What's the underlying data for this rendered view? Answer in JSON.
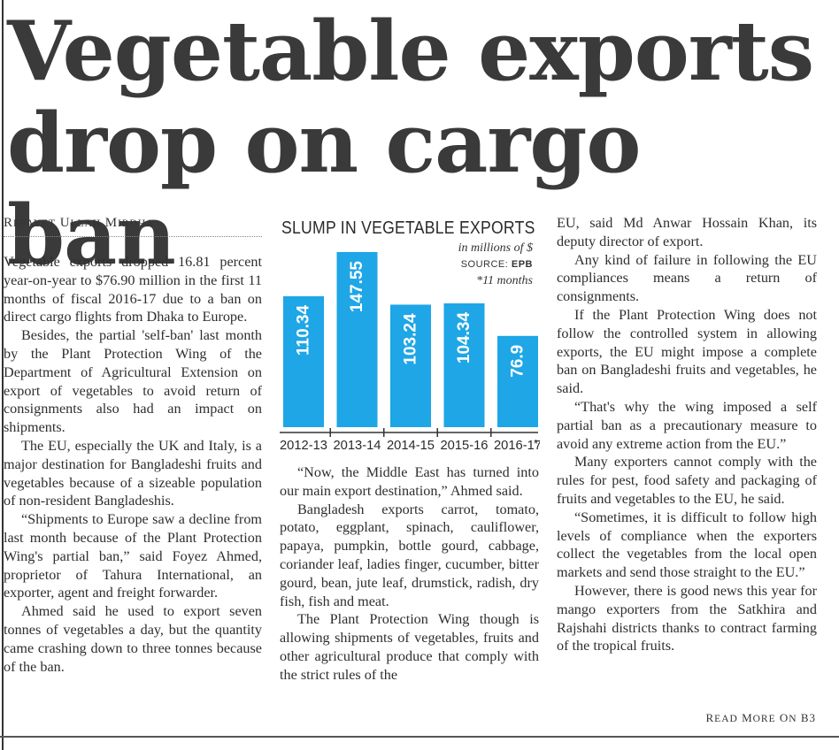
{
  "headline": {
    "line1": "Vegetable exports",
    "line2": "drop on cargo ban"
  },
  "byline": {
    "first_initial": "R",
    "first_rest": "EFAYET",
    "last_initial": "U",
    "last_rest": "LLAH",
    "third_initial": "M",
    "third_rest": "IRDHA"
  },
  "chart_data": {
    "type": "bar",
    "title": "SLUMP IN VEGETABLE EXPORTS",
    "unit": "in millions of $",
    "source_label": "SOURCE:",
    "source": "EPB",
    "note": "*11 months",
    "categories": [
      "2012-13",
      "2013-14",
      "2014-15",
      "2015-16",
      "2016-17"
    ],
    "values": [
      110.34,
      147.55,
      103.24,
      104.34,
      76.9
    ],
    "value_labels": [
      "110.34",
      "147.55",
      "103.24",
      "104.34",
      "76.9"
    ],
    "footnote_marker": "*",
    "ylim": [
      0,
      155
    ],
    "bar_color": "#1ea6e6",
    "axis_color": "#333333"
  },
  "col1": [
    "Vegetable exports dropped 16.81 percent year-on-year to $76.90 million in the first 11 months of fiscal 2016-17 due to a ban on direct cargo flights from Dhaka to Europe.",
    "Besides, the partial 'self-ban' last month by the Plant Protection Wing of the Department of Agricultural Extension on export of vegetables to avoid return of consignments also had an impact on shipments.",
    "The EU, especially the UK and Italy, is a major destination for Bangladeshi fruits and vegetables because of a sizeable population of non-resident Bangladeshis.",
    "“Shipments to Europe saw a decline from last month because of the Plant Protection Wing's partial ban,” said Foyez Ahmed, proprietor of Tahura International, an exporter, agent and freight forwarder.",
    "Ahmed said he used to export seven tonnes of vegetables a day, but the quantity came crashing down to three tonnes because of the ban."
  ],
  "col2": [
    "“Now, the Middle East has turned into our main export destination,” Ahmed said.",
    "Bangladesh exports carrot, tomato, potato, eggplant, spinach, cauliflower, papaya, pumpkin, bottle gourd, cabbage, coriander leaf, ladies finger, cucumber, bitter gourd, bean, jute leaf, drumstick, radish, dry fish, fish and meat.",
    "The Plant Protection Wing though is allowing shipments of vegetables, fruits and other agricultural produce that comply with the strict rules of the"
  ],
  "col3": [
    "EU, said Md Anwar Hossain Khan, its deputy director of export.",
    "Any kind of failure in following the EU compliances means a return of consignments.",
    "If the Plant Protection Wing does not follow the controlled system in allowing exports, the EU might impose a complete ban on Bangladeshi fruits and vegetables, he said.",
    "“That's why the wing imposed a self partial ban as a precautionary measure to avoid any extreme action from the EU.”",
    "Many exporters cannot comply with the rules for pest, food safety and packaging of fruits and vegetables to the EU, he said.",
    "“Sometimes, it is difficult to follow high levels of compliance when the exporters collect the vegetables from the local open markets and send those straight to the EU.”",
    "However, there is good news this year for mango exporters from the Satkhira and Rajshahi districts thanks to contract farming of the tropical fruits."
  ],
  "readmore": {
    "r": "R",
    "ead": "EAD",
    "m": "M",
    "ore": "ORE",
    "o": "O",
    "n": "N",
    "page": "B3"
  }
}
